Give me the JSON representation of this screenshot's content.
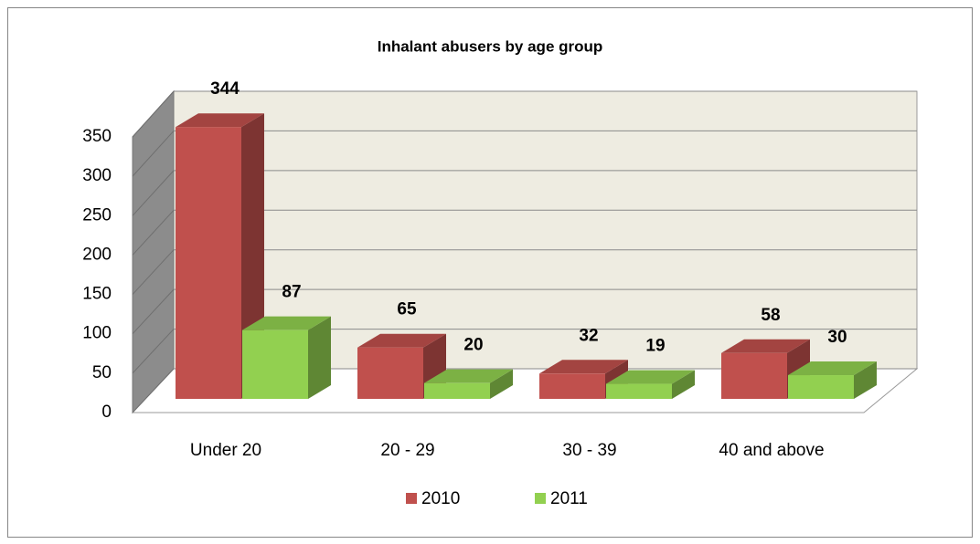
{
  "chart_data": {
    "type": "bar3d",
    "title": "Inhalant abusers by age group",
    "categories": [
      "Under 20",
      "20 - 29",
      "30 - 39",
      "40 and above"
    ],
    "series": [
      {
        "name": "2010",
        "color": "#c0504d",
        "values": [
          344,
          65,
          32,
          58
        ]
      },
      {
        "name": "2011",
        "color": "#92d050",
        "values": [
          87,
          20,
          19,
          30
        ]
      }
    ],
    "ylim": [
      0,
      350
    ],
    "yticks": [
      0,
      50,
      100,
      150,
      200,
      250,
      300,
      350
    ],
    "grid": true,
    "legend": "bottom"
  }
}
